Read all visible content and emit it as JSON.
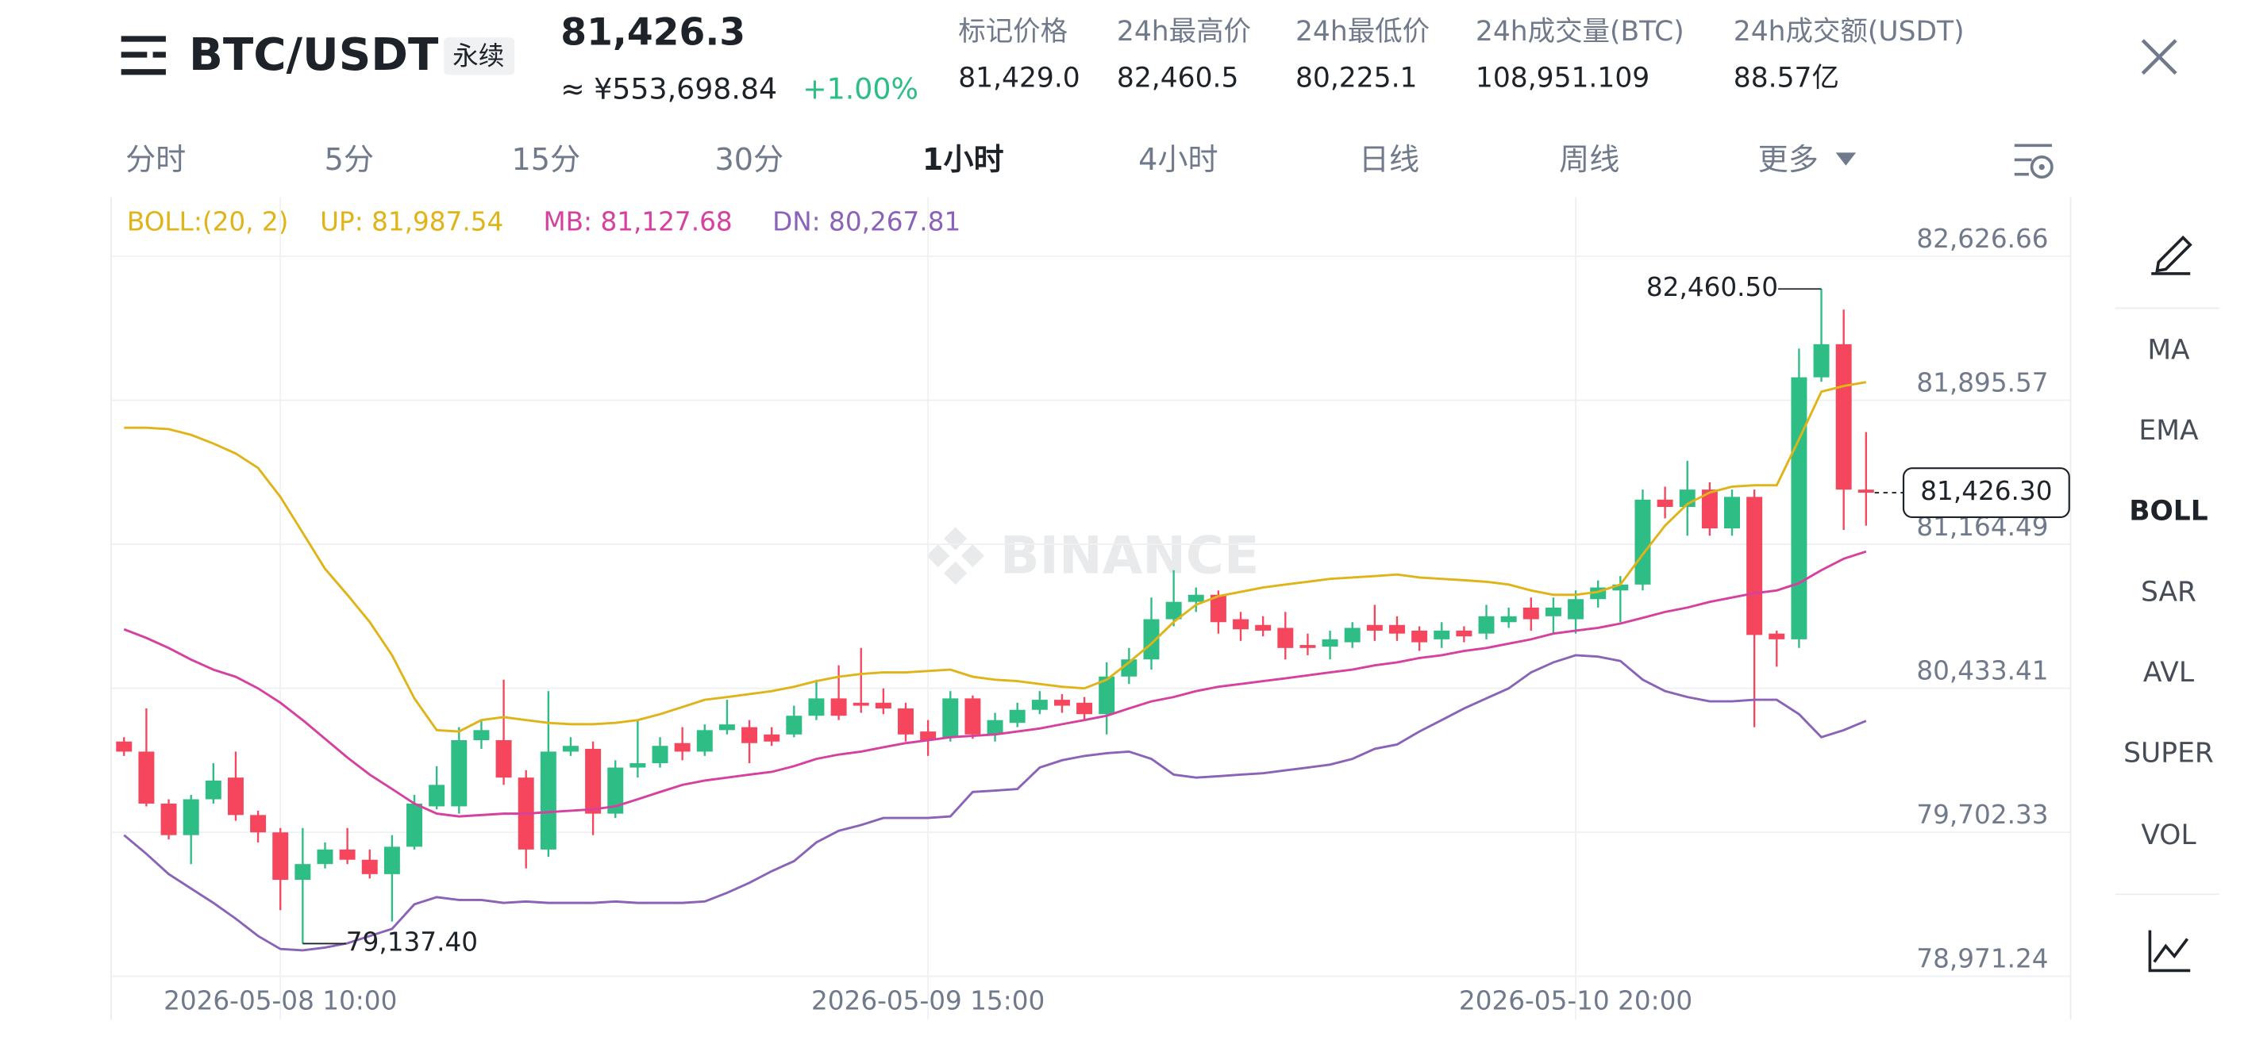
{
  "header": {
    "symbol": "BTC/USDT",
    "tag": "永续",
    "price": "81,426.3",
    "price_cny": "≈ ¥553,698.84",
    "change": "+1.00%"
  },
  "stats": [
    {
      "label": "标记价格",
      "value": "81,429.0"
    },
    {
      "label": "24h最高价",
      "value": "82,460.5"
    },
    {
      "label": "24h最低价",
      "value": "80,225.1"
    },
    {
      "label": "24h成交量(BTC)",
      "value": "108,951.109"
    },
    {
      "label": "24h成交额(USDT)",
      "value": "88.57亿"
    }
  ],
  "tabs": [
    {
      "label": "分时",
      "active": false
    },
    {
      "label": "5分",
      "active": false
    },
    {
      "label": "15分",
      "active": false
    },
    {
      "label": "30分",
      "active": false
    },
    {
      "label": "1小时",
      "active": true
    },
    {
      "label": "4小时",
      "active": false
    },
    {
      "label": "日线",
      "active": false
    },
    {
      "label": "周线",
      "active": false
    },
    {
      "label": "更多",
      "active": false
    }
  ],
  "indicators": [
    {
      "label": "MA",
      "active": false
    },
    {
      "label": "EMA",
      "active": false
    },
    {
      "label": "BOLL",
      "active": true
    },
    {
      "label": "SAR",
      "active": false
    },
    {
      "label": "AVL",
      "active": false
    },
    {
      "label": "SUPER",
      "active": false
    },
    {
      "label": "VOL",
      "active": false
    }
  ],
  "chart_data": {
    "type": "candlestick",
    "legend_title": "BOLL:(20, 2)",
    "watermark": "BINANCE",
    "categories": [
      null,
      null,
      null,
      null,
      null,
      null,
      null,
      "2026-05-08 10:00",
      null,
      null,
      null,
      null,
      null,
      null,
      null,
      null,
      null,
      null,
      null,
      null,
      null,
      null,
      null,
      null,
      null,
      null,
      null,
      null,
      null,
      null,
      null,
      null,
      null,
      null,
      null,
      null,
      "2026-05-09 15:00",
      null,
      null,
      null,
      null,
      null,
      null,
      null,
      null,
      null,
      null,
      null,
      null,
      null,
      null,
      null,
      null,
      null,
      null,
      null,
      null,
      null,
      null,
      null,
      null,
      null,
      null,
      null,
      null,
      "2026-05-10 20:00",
      null,
      null,
      null,
      null,
      null,
      null,
      null,
      null,
      null,
      null,
      null,
      null,
      null
    ],
    "open": [
      80163,
      80112,
      79848,
      79688,
      79870,
      79980,
      79790,
      79702,
      79461,
      79541,
      79615,
      79563,
      79490,
      79629,
      79834,
      79834,
      80170,
      80170,
      79980,
      79615,
      80112,
      80126,
      79797,
      80031,
      80053,
      80155,
      80112,
      80221,
      80236,
      80199,
      80199,
      80294,
      80382,
      80360,
      80360,
      80331,
      80214,
      80185,
      80382,
      80199,
      80258,
      80324,
      80375,
      80360,
      80302,
      80493,
      80580,
      80784,
      80872,
      80908,
      80784,
      80755,
      80740,
      80653,
      80645,
      80667,
      80755,
      80755,
      80726,
      80682,
      80726,
      80711,
      80769,
      80843,
      80799,
      80784,
      80886,
      80930,
      80960,
      81391,
      81354,
      81442,
      81245,
      81405,
      80711,
      80682,
      82012,
      82180,
      81442
    ],
    "high": [
      80185,
      80331,
      79870,
      79892,
      80053,
      80112,
      79812,
      79724,
      79724,
      79651,
      79724,
      79615,
      79688,
      79892,
      80038,
      80236,
      80272,
      80477,
      80017,
      80419,
      80185,
      80163,
      80068,
      80272,
      80185,
      80236,
      80250,
      80375,
      80272,
      80236,
      80345,
      80477,
      80550,
      80638,
      80433,
      80360,
      80272,
      80419,
      80397,
      80309,
      80360,
      80419,
      80404,
      80389,
      80565,
      80638,
      80894,
      81033,
      80945,
      80930,
      80821,
      80799,
      80821,
      80711,
      80726,
      80769,
      80857,
      80799,
      80748,
      80769,
      80748,
      80857,
      80843,
      80894,
      80894,
      80930,
      80981,
      81003,
      81442,
      81457,
      81588,
      81479,
      81442,
      81442,
      80726,
      82158,
      82460.5,
      82356,
      81734
    ],
    "low": [
      80090,
      79834,
      79666,
      79541,
      79848,
      79761,
      79651,
      79307,
      79137.4,
      79519,
      79541,
      79468,
      79249,
      79615,
      79819,
      79797,
      80126,
      79943,
      79519,
      79578,
      80090,
      79688,
      79775,
      79980,
      80031,
      80068,
      80090,
      80199,
      80053,
      80141,
      80185,
      80272,
      80272,
      80309,
      80302,
      80163,
      80090,
      80163,
      80177,
      80163,
      80236,
      80302,
      80309,
      80272,
      80199,
      80455,
      80528,
      80748,
      80821,
      80711,
      80674,
      80697,
      80580,
      80601,
      80580,
      80638,
      80674,
      80674,
      80623,
      80638,
      80667,
      80682,
      80740,
      80726,
      80711,
      80711,
      80843,
      80769,
      80930,
      81296,
      81208,
      81208,
      81208,
      80236,
      80543,
      80638,
      81990,
      81237,
      81259
    ],
    "close": [
      80112,
      79848,
      79688,
      79870,
      79965,
      79790,
      79702,
      79461,
      79541,
      79615,
      79563,
      79490,
      79629,
      79848,
      79943,
      80170,
      80221,
      79980,
      79615,
      80112,
      80141,
      79797,
      80031,
      80053,
      80141,
      80112,
      80221,
      80250,
      80155,
      80163,
      80294,
      80382,
      80294,
      80345,
      80331,
      80199,
      80170,
      80382,
      80199,
      80272,
      80324,
      80375,
      80345,
      80302,
      80493,
      80580,
      80784,
      80872,
      80908,
      80769,
      80733,
      80726,
      80638,
      80638,
      80682,
      80740,
      80726,
      80711,
      80667,
      80726,
      80697,
      80799,
      80799,
      80784,
      80843,
      80886,
      80945,
      80960,
      81391,
      81354,
      81442,
      81245,
      81405,
      80704,
      80682,
      82012,
      82180,
      81442,
      81426.3
    ],
    "up_color": "#2ebd85",
    "down_color": "#f6465d",
    "series": [
      {
        "legend_label": "UP: 81,987.54",
        "color": "#e0b419",
        "values": [
          81756,
          81756,
          81749,
          81720,
          81676,
          81625,
          81552,
          81405,
          81223,
          81040,
          80908,
          80770,
          80601,
          80382,
          80221,
          80214,
          80272,
          80287,
          80272,
          80258,
          80251,
          80251,
          80258,
          80272,
          80302,
          80338,
          80375,
          80389,
          80404,
          80419,
          80441,
          80470,
          80492,
          80506,
          80514,
          80514,
          80521,
          80528,
          80492,
          80477,
          80470,
          80455,
          80441,
          80433,
          80477,
          80565,
          80660,
          80770,
          80857,
          80901,
          80923,
          80945,
          80960,
          80974,
          80989,
          80996,
          81003,
          81011,
          80996,
          80989,
          80982,
          80974,
          80960,
          80930,
          80908,
          80908,
          80923,
          80960,
          81113,
          81259,
          81369,
          81427,
          81457,
          81464,
          81464,
          81698,
          81939,
          81968,
          81987.54
        ]
      },
      {
        "legend_label": "MB: 81,127.68",
        "color": "#d6409f",
        "values": [
          80733,
          80689,
          80638,
          80579,
          80528,
          80492,
          80433,
          80360,
          80272,
          80177,
          80082,
          79995,
          79922,
          79848,
          79797,
          79783,
          79790,
          79797,
          79797,
          79805,
          79812,
          79819,
          79834,
          79870,
          79907,
          79943,
          79965,
          79980,
          79995,
          80009,
          80038,
          80075,
          80097,
          80112,
          80134,
          80155,
          80170,
          80185,
          80192,
          80199,
          80214,
          80229,
          80251,
          80272,
          80294,
          80331,
          80367,
          80389,
          80419,
          80441,
          80455,
          80470,
          80484,
          80499,
          80514,
          80528,
          80550,
          80565,
          80587,
          80601,
          80623,
          80638,
          80660,
          80682,
          80711,
          80726,
          80740,
          80762,
          80791,
          80821,
          80843,
          80872,
          80894,
          80916,
          80930,
          80967,
          81033,
          81091,
          81127.68
        ]
      },
      {
        "legend_label": "DN: 80,267.81",
        "color": "#8a63b8",
        "values": [
          79688,
          79593,
          79490,
          79417,
          79344,
          79264,
          79176,
          79110,
          79103,
          79117,
          79139,
          79176,
          79212,
          79337,
          79373,
          79359,
          79359,
          79344,
          79351,
          79344,
          79344,
          79344,
          79351,
          79344,
          79344,
          79344,
          79351,
          79395,
          79446,
          79505,
          79556,
          79651,
          79710,
          79739,
          79775,
          79775,
          79775,
          79783,
          79907,
          79914,
          79922,
          80031,
          80068,
          80090,
          80104,
          80112,
          80075,
          79995,
          79980,
          79987,
          79995,
          80002,
          80017,
          80031,
          80046,
          80075,
          80126,
          80148,
          80214,
          80272,
          80331,
          80382,
          80433,
          80514,
          80565,
          80601,
          80594,
          80572,
          80477,
          80419,
          80389,
          80367,
          80367,
          80375,
          80375,
          80302,
          80185,
          80221,
          80267.81
        ]
      }
    ],
    "max_label": "82,460.50",
    "min_label": "79,137.40",
    "last_label": "81,426.30",
    "ylim": [
      78751.9,
      82925.9
    ],
    "yticks": [
      {
        "value": 82626.66,
        "label": "82,626.66"
      },
      {
        "value": 81895.57,
        "label": "81,895.57"
      },
      {
        "value": 81164.49,
        "label": "81,164.49"
      },
      {
        "value": 80433.41,
        "label": "80,433.41"
      },
      {
        "value": 79702.33,
        "label": "79,702.33"
      },
      {
        "value": 78971.24,
        "label": "78,971.24"
      }
    ],
    "grid": true
  }
}
